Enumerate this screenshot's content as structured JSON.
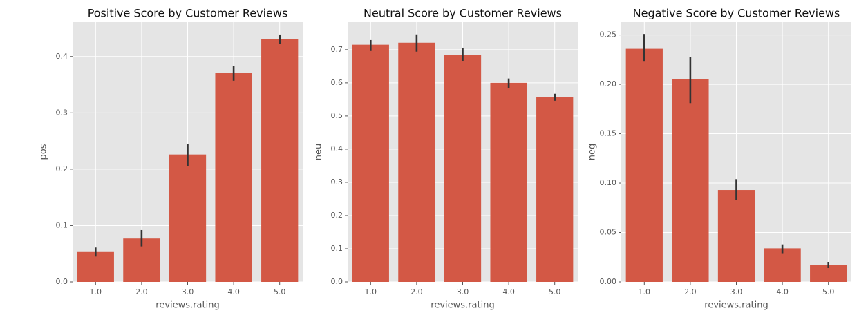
{
  "chart_data": [
    {
      "type": "bar",
      "title": "Positive Score by Customer Reviews",
      "x_label": "reviews.rating",
      "y_label": "pos",
      "categories": [
        "1.0",
        "2.0",
        "3.0",
        "4.0",
        "5.0"
      ],
      "values": [
        0.053,
        0.077,
        0.226,
        0.371,
        0.431
      ],
      "ci_low": [
        0.045,
        0.063,
        0.205,
        0.357,
        0.422
      ],
      "ci_high": [
        0.061,
        0.092,
        0.244,
        0.383,
        0.439
      ],
      "color": "#d35845",
      "ylim": [
        0,
        0.461
      ],
      "yticks": [
        {
          "value": 0,
          "label": "0.0"
        },
        0.1,
        0.2,
        0.3,
        0.4
      ],
      "grid": true
    },
    {
      "type": "bar",
      "title": "Neutral Score by Customer Reviews",
      "x_label": "reviews.rating",
      "y_label": "neu",
      "categories": [
        "1.0",
        "2.0",
        "3.0",
        "4.0",
        "5.0"
      ],
      "values": [
        0.715,
        0.721,
        0.685,
        0.6,
        0.556
      ],
      "ci_low": [
        0.696,
        0.694,
        0.665,
        0.585,
        0.546
      ],
      "ci_high": [
        0.729,
        0.746,
        0.706,
        0.613,
        0.567
      ],
      "color": "#d35845",
      "ylim": [
        0,
        0.783
      ],
      "yticks": [
        {
          "value": 0,
          "label": "0.0"
        },
        0.1,
        0.2,
        0.3,
        0.4,
        0.5,
        0.6,
        0.7
      ],
      "grid": true
    },
    {
      "type": "bar",
      "title": "Negative Score by Customer Reviews",
      "x_label": "reviews.rating",
      "y_label": "neg",
      "categories": [
        "1.0",
        "2.0",
        "3.0",
        "4.0",
        "5.0"
      ],
      "values": [
        0.236,
        0.205,
        0.093,
        0.034,
        0.017
      ],
      "ci_low": [
        0.223,
        0.181,
        0.083,
        0.029,
        0.014
      ],
      "ci_high": [
        0.251,
        0.228,
        0.104,
        0.038,
        0.02
      ],
      "color": "#d35845",
      "ylim": [
        0,
        0.263
      ],
      "yticks": [
        {
          "value": 0,
          "label": "0.00"
        },
        0.05,
        {
          "value": 0.1,
          "label": "0.10"
        },
        0.15,
        {
          "value": 0.2,
          "label": "0.20"
        },
        0.25
      ],
      "grid": true
    }
  ]
}
